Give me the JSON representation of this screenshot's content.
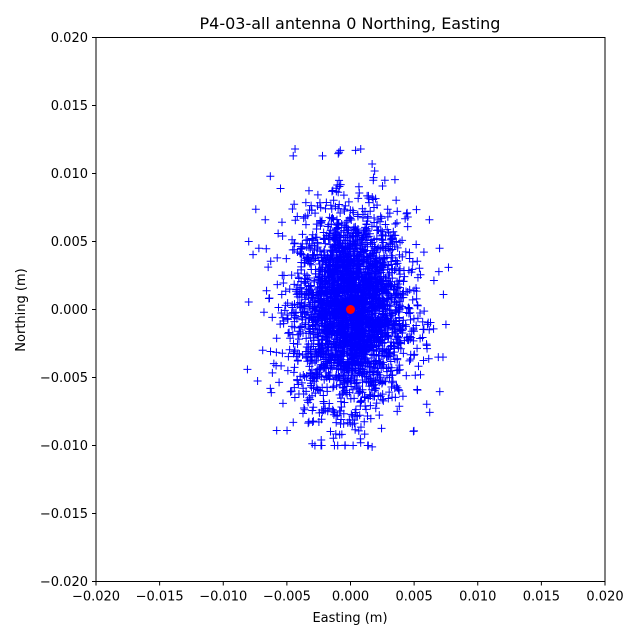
{
  "chart_data": {
    "type": "scatter",
    "title": "P4-03-all antenna 0 Northing, Easting",
    "xlabel": "Easting (m)",
    "ylabel": "Northing (m)",
    "xlim": [
      -0.02,
      0.02
    ],
    "ylim": [
      -0.02,
      0.02
    ],
    "x_ticks": [
      "−0.020",
      "−0.015",
      "−0.010",
      "−0.005",
      "0.000",
      "0.005",
      "0.010",
      "0.015",
      "0.020"
    ],
    "y_ticks": [
      "−0.020",
      "−0.015",
      "−0.010",
      "−0.005",
      "0.000",
      "0.005",
      "0.010",
      "0.015",
      "0.020"
    ],
    "grid": false,
    "series": [
      {
        "marker": "plus",
        "color": "#0000ff",
        "distribution": {
          "center": [
            0.0,
            0.0
          ],
          "std_easting": 0.0022,
          "std_northing": 0.0035,
          "easting_range": [
            -0.008,
            0.008
          ],
          "northing_range": [
            -0.01,
            0.0118
          ]
        },
        "outliers": [
          [
            -0.008,
            0.005
          ],
          [
            -0.0081,
            -0.0044
          ],
          [
            -0.0063,
            0.0098
          ],
          [
            -0.0058,
            -0.0089
          ],
          [
            -0.0045,
            0.0113
          ],
          [
            -0.0022,
            0.0113
          ],
          [
            -0.0008,
            0.0117
          ],
          [
            0.0004,
            0.0117
          ],
          [
            0.0017,
            0.0107
          ],
          [
            0.0027,
            0.0095
          ],
          [
            0.0077,
            0.0031
          ],
          [
            0.007,
            0.0045
          ],
          [
            0.0073,
            0.0011
          ],
          [
            0.0075,
            -0.0011
          ],
          [
            0.0069,
            -0.0035
          ],
          [
            0.0055,
            -0.0048
          ],
          [
            0.0017,
            -0.0101
          ],
          [
            0.0008,
            -0.0098
          ],
          [
            -0.0023,
            -0.0096
          ],
          [
            -0.0045,
            -0.0083
          ],
          [
            -0.0069,
            -0.003
          ],
          [
            -0.0072,
            0.0045
          ],
          [
            -0.0068,
            -0.0002
          ],
          [
            0.0062,
            0.0066
          ],
          [
            0.0045,
            0.0068
          ],
          [
            -0.0055,
            0.0089
          ],
          [
            -0.0067,
            0.0066
          ],
          [
            -0.0063,
            -0.0058
          ]
        ]
      },
      {
        "marker": "circle",
        "color": "#ff0000",
        "points": [
          [
            0.0,
            0.0
          ]
        ]
      }
    ]
  }
}
